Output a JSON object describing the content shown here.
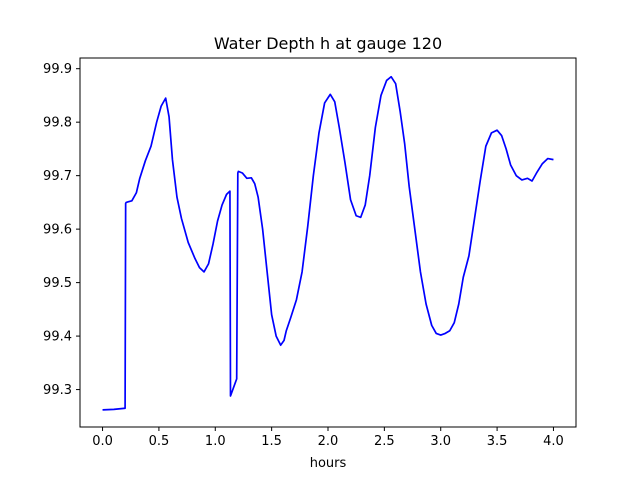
{
  "chart_data": {
    "type": "line",
    "title": "Water Depth h at gauge 120",
    "xlabel": "hours",
    "ylabel": "",
    "xlim": [
      -0.2,
      4.2
    ],
    "ylim": [
      99.23,
      99.92
    ],
    "xticks": [
      0.0,
      0.5,
      1.0,
      1.5,
      2.0,
      2.5,
      3.0,
      3.5,
      4.0
    ],
    "xtick_labels": [
      "0.0",
      "0.5",
      "1.0",
      "1.5",
      "2.0",
      "2.5",
      "3.0",
      "3.5",
      "4.0"
    ],
    "yticks": [
      99.3,
      99.4,
      99.5,
      99.6,
      99.7,
      99.8,
      99.9
    ],
    "ytick_labels": [
      "99.3",
      "99.4",
      "99.5",
      "99.6",
      "99.7",
      "99.8",
      "99.9"
    ],
    "grid": false,
    "legend": "none",
    "line_color": "#0000ff",
    "series": [
      {
        "x": [
          0.0,
          0.1,
          0.2,
          0.205,
          0.21,
          0.26,
          0.3,
          0.33,
          0.38,
          0.43,
          0.48,
          0.52,
          0.56,
          0.59,
          0.62,
          0.66,
          0.7,
          0.76,
          0.82,
          0.86,
          0.9,
          0.94,
          0.98,
          1.02,
          1.06,
          1.1,
          1.13,
          1.135,
          1.19,
          1.2,
          1.205,
          1.24,
          1.28,
          1.32,
          1.35,
          1.38,
          1.42,
          1.46,
          1.5,
          1.54,
          1.58,
          1.61,
          1.63,
          1.67,
          1.72,
          1.77,
          1.82,
          1.87,
          1.92,
          1.97,
          2.02,
          2.06,
          2.1,
          2.15,
          2.2,
          2.25,
          2.29,
          2.33,
          2.37,
          2.42,
          2.47,
          2.52,
          2.56,
          2.6,
          2.64,
          2.68,
          2.72,
          2.77,
          2.82,
          2.87,
          2.92,
          2.96,
          3.0,
          3.04,
          3.08,
          3.12,
          3.16,
          3.2,
          3.25,
          3.3,
          3.35,
          3.4,
          3.45,
          3.5,
          3.54,
          3.58,
          3.62,
          3.67,
          3.72,
          3.77,
          3.81,
          3.85,
          3.9,
          3.95,
          4.0
        ],
        "y": [
          99.262,
          99.263,
          99.265,
          99.648,
          99.65,
          99.653,
          99.668,
          99.695,
          99.728,
          99.755,
          99.8,
          99.83,
          99.845,
          99.81,
          99.73,
          99.66,
          99.62,
          99.575,
          99.545,
          99.528,
          99.52,
          99.535,
          99.572,
          99.615,
          99.645,
          99.665,
          99.671,
          99.288,
          99.32,
          99.705,
          99.708,
          99.705,
          99.695,
          99.696,
          99.685,
          99.66,
          99.6,
          99.52,
          99.44,
          99.4,
          99.383,
          99.392,
          99.41,
          99.435,
          99.468,
          99.52,
          99.605,
          99.7,
          99.78,
          99.836,
          99.852,
          99.838,
          99.79,
          99.725,
          99.655,
          99.625,
          99.622,
          99.645,
          99.7,
          99.79,
          99.85,
          99.878,
          99.885,
          99.872,
          99.82,
          99.76,
          99.68,
          99.6,
          99.52,
          99.46,
          99.42,
          99.405,
          99.402,
          99.405,
          99.41,
          99.425,
          99.46,
          99.51,
          99.55,
          99.62,
          99.69,
          99.755,
          99.78,
          99.785,
          99.775,
          99.75,
          99.72,
          99.7,
          99.692,
          99.695,
          99.69,
          99.705,
          99.722,
          99.732,
          99.73
        ]
      }
    ]
  }
}
